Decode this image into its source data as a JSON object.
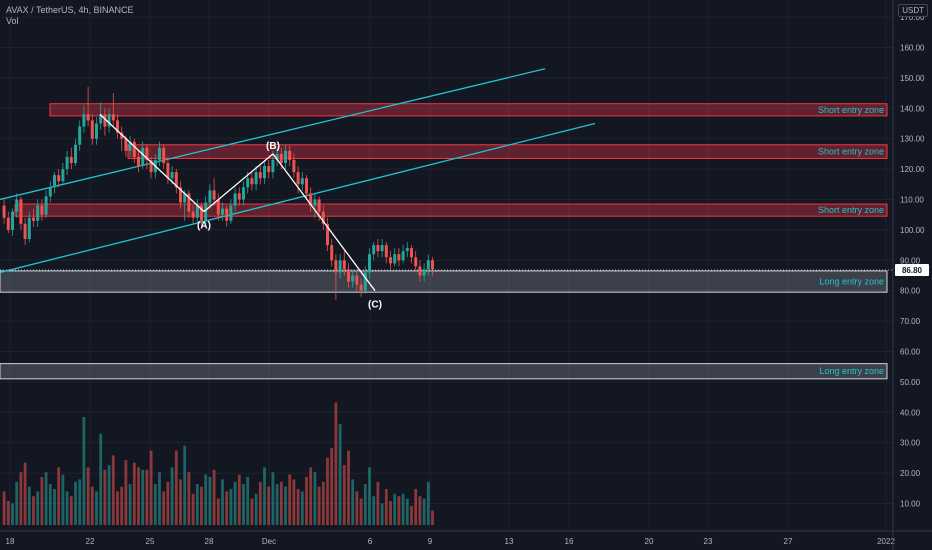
{
  "legend": {
    "symbol": "AVAX / TetherUS, 4h, BINANCE",
    "volume_label": "Vol"
  },
  "currency": "USDT",
  "colors": {
    "background": "#131722",
    "up": "#26a69a",
    "down": "#ef5350",
    "channel": "#22c3d0",
    "wave": "#ffffff",
    "short_zone": "#f23645",
    "long_zone": "#d1d4dc",
    "zone_label": "#22c3d0",
    "price_badge": "#ffffff"
  },
  "chart_data": {
    "type": "candlestick",
    "x_ticks": [
      "18",
      "22",
      "25",
      "28",
      "Dec",
      "6",
      "9",
      "13",
      "16",
      "20",
      "23",
      "27",
      "2022"
    ],
    "y_ticks": [
      "170.00",
      "160.00",
      "150.00",
      "140.00",
      "130.00",
      "120.00",
      "110.00",
      "100.00",
      "90.00",
      "80.00",
      "70.00",
      "60.00",
      "50.00",
      "40.00",
      "30.00",
      "20.00",
      "10.00"
    ],
    "last_price": "86.80",
    "wave_points": [
      {
        "label": "",
        "price": 138
      },
      {
        "label": "(A)",
        "price": 106
      },
      {
        "label": "(B)",
        "price": 125
      },
      {
        "label": "(C)",
        "price": 80
      }
    ],
    "channel_lines": [
      {
        "start_price": 110,
        "end_price": 153
      },
      {
        "start_price": 86,
        "end_price": 135
      }
    ],
    "zones": [
      {
        "label": "Short entry zone",
        "kind": "short",
        "low": 137.5,
        "high": 141.5
      },
      {
        "label": "Short entry zone",
        "kind": "short",
        "low": 123.5,
        "high": 128
      },
      {
        "label": "Short entry zone",
        "kind": "short",
        "low": 104.5,
        "high": 108.5
      },
      {
        "label": "Long entry zone",
        "kind": "long",
        "low": 79.5,
        "high": 86.5
      },
      {
        "label": "Long entry zone",
        "kind": "long",
        "low": 51,
        "high": 56
      }
    ],
    "candles": [
      [
        108,
        104,
        110,
        102
      ],
      [
        104,
        100,
        106,
        99
      ],
      [
        100,
        106,
        107,
        98
      ],
      [
        106,
        110,
        112,
        104
      ],
      [
        110,
        102,
        111,
        100
      ],
      [
        102,
        97,
        104,
        95
      ],
      [
        97,
        104,
        106,
        96
      ],
      [
        104,
        103,
        107,
        101
      ],
      [
        103,
        108,
        110,
        101
      ],
      [
        108,
        105,
        110,
        103
      ],
      [
        105,
        111,
        113,
        104
      ],
      [
        111,
        114,
        116,
        109
      ],
      [
        114,
        118,
        119,
        112
      ],
      [
        118,
        116,
        120,
        114
      ],
      [
        116,
        120,
        122,
        115
      ],
      [
        120,
        124,
        126,
        118
      ],
      [
        124,
        122,
        127,
        120
      ],
      [
        122,
        128,
        130,
        121
      ],
      [
        128,
        134,
        136,
        126
      ],
      [
        134,
        138,
        141,
        132
      ],
      [
        138,
        136,
        147,
        134
      ],
      [
        136,
        130,
        138,
        128
      ],
      [
        130,
        135,
        137,
        128
      ],
      [
        135,
        138,
        142,
        133
      ],
      [
        138,
        134,
        140,
        131
      ],
      [
        134,
        138,
        140,
        132
      ],
      [
        138,
        136,
        145,
        134
      ],
      [
        136,
        132,
        138,
        130
      ],
      [
        132,
        130,
        134,
        126
      ],
      [
        130,
        126,
        131,
        124
      ],
      [
        126,
        129,
        131,
        124
      ],
      [
        129,
        124,
        130,
        122
      ],
      [
        124,
        121,
        126,
        119
      ],
      [
        121,
        127,
        129,
        120
      ],
      [
        127,
        123,
        128,
        120
      ],
      [
        123,
        119,
        124,
        117
      ],
      [
        119,
        123,
        125,
        117
      ],
      [
        123,
        127,
        129,
        121
      ],
      [
        127,
        122,
        128,
        120
      ],
      [
        122,
        117,
        124,
        115
      ],
      [
        117,
        119,
        121,
        115
      ],
      [
        119,
        114,
        120,
        112
      ],
      [
        114,
        109,
        116,
        107
      ],
      [
        109,
        112,
        113,
        103
      ],
      [
        112,
        106,
        113,
        104
      ],
      [
        106,
        104,
        108,
        102
      ],
      [
        104,
        108,
        110,
        102
      ],
      [
        108,
        103,
        109,
        101
      ],
      [
        103,
        109,
        111,
        102
      ],
      [
        109,
        113,
        115,
        107
      ],
      [
        113,
        110,
        117,
        108
      ],
      [
        110,
        105,
        112,
        103
      ],
      [
        105,
        107,
        109,
        103
      ],
      [
        107,
        103,
        108,
        101
      ],
      [
        103,
        108,
        110,
        102
      ],
      [
        108,
        112,
        114,
        106
      ],
      [
        112,
        110,
        114,
        108
      ],
      [
        110,
        114,
        116,
        108
      ],
      [
        114,
        117,
        119,
        112
      ],
      [
        117,
        115,
        119,
        113
      ],
      [
        115,
        119,
        121,
        113
      ],
      [
        119,
        117,
        121,
        115
      ],
      [
        117,
        121,
        123,
        115
      ],
      [
        121,
        119,
        123,
        117
      ],
      [
        119,
        123,
        126,
        117
      ],
      [
        123,
        125,
        127,
        121
      ],
      [
        125,
        122,
        127,
        120
      ],
      [
        122,
        126,
        128,
        120
      ],
      [
        126,
        123,
        128,
        121
      ],
      [
        123,
        119,
        125,
        117
      ],
      [
        119,
        115,
        121,
        112
      ],
      [
        115,
        117,
        119,
        113
      ],
      [
        117,
        112,
        118,
        110
      ],
      [
        112,
        108,
        114,
        106
      ],
      [
        108,
        110,
        112,
        104
      ],
      [
        110,
        106,
        111,
        103
      ],
      [
        106,
        102,
        108,
        100
      ],
      [
        102,
        95,
        104,
        93
      ],
      [
        95,
        90,
        97,
        88
      ],
      [
        90,
        86,
        92,
        77
      ],
      [
        86,
        90,
        92,
        84
      ],
      [
        90,
        87,
        93,
        85
      ],
      [
        87,
        83,
        89,
        81
      ],
      [
        83,
        85,
        87,
        81
      ],
      [
        85,
        82,
        87,
        80
      ],
      [
        82,
        80,
        84,
        78
      ],
      [
        80,
        86,
        88,
        79
      ],
      [
        86,
        92,
        94,
        84
      ],
      [
        92,
        95,
        96,
        90
      ],
      [
        95,
        93,
        97,
        91
      ],
      [
        93,
        95,
        97,
        91
      ],
      [
        95,
        91,
        96,
        89
      ],
      [
        91,
        89,
        93,
        87
      ],
      [
        89,
        92,
        94,
        88
      ],
      [
        92,
        90,
        94,
        88
      ],
      [
        90,
        93,
        95,
        89
      ],
      [
        93,
        94,
        96,
        91
      ],
      [
        94,
        91,
        95,
        89
      ],
      [
        91,
        88,
        93,
        86
      ],
      [
        88,
        85,
        90,
        83
      ],
      [
        85,
        87,
        89,
        83
      ],
      [
        87,
        90,
        92,
        85
      ],
      [
        90,
        87,
        91,
        85
      ]
    ],
    "volumes": [
      14,
      10,
      9,
      18,
      22,
      26,
      16,
      12,
      14,
      20,
      22,
      17,
      15,
      24,
      21,
      14,
      12,
      18,
      19,
      45,
      24,
      16,
      14,
      38,
      23,
      25,
      29,
      14,
      16,
      27,
      17,
      26,
      24,
      23,
      23,
      31,
      17,
      22,
      14,
      18,
      24,
      31,
      19,
      33,
      22,
      13,
      17,
      16,
      21,
      20,
      23,
      11,
      19,
      14,
      15,
      18,
      21,
      17,
      20,
      11,
      13,
      18,
      24,
      16,
      22,
      17,
      18,
      16,
      21,
      19,
      15,
      14,
      20,
      24,
      22,
      16,
      18,
      28,
      32,
      51,
      42,
      25,
      31,
      19,
      14,
      11,
      17,
      24,
      12,
      18,
      9,
      15,
      10,
      13,
      12,
      13,
      11,
      8,
      15,
      12,
      11,
      18,
      6
    ]
  }
}
